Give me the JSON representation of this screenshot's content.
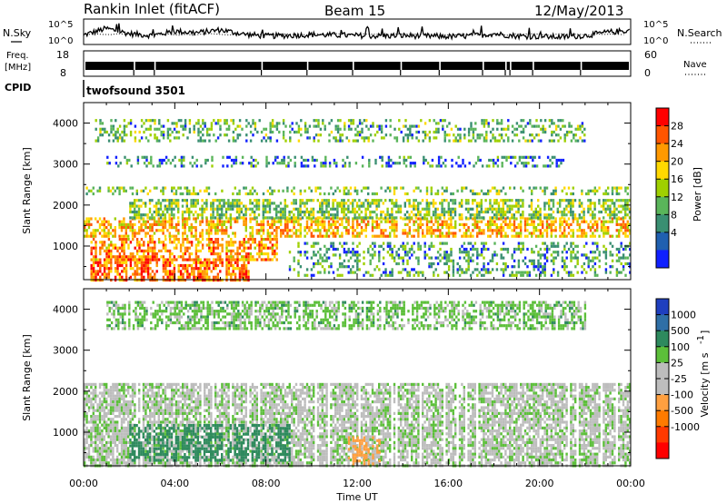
{
  "header": {
    "title": "Rankin Inlet (fitACF)",
    "beam": "Beam 15",
    "date": "12/May/2013"
  },
  "meta_panel": {
    "nsky_label": "N.Sky",
    "nsearch_label": "N.Search",
    "freq_label": "Freq.",
    "freq_unit": "[MHz]",
    "nave_label": "Nave",
    "cpid_label": "CPID",
    "cpid_value": "twofsound 3501",
    "noise_ticks": [
      "10^5",
      "10^0"
    ],
    "noise_ticks_right": [
      "10^5",
      "10^0"
    ],
    "freq_ticks": [
      "18",
      "8"
    ],
    "nave_ticks": [
      "60",
      "0"
    ]
  },
  "chart_data": [
    {
      "type": "heatmap",
      "name": "power",
      "ylabel": "Slant Range [km]",
      "ylim": [
        180,
        4500
      ],
      "yticks": [
        1000,
        2000,
        3000,
        4000
      ],
      "xlim": [
        0,
        24
      ],
      "colorbar_label": "Power [dB]",
      "colorbar_ticks": [
        "28",
        "24",
        "20",
        "16",
        "12",
        "8",
        "4"
      ],
      "colorbar_colors": [
        "#ff0000",
        "#ff5500",
        "#ff9900",
        "#ffd900",
        "#9fd000",
        "#5ab55a",
        "#3a8f72",
        "#2060b0",
        "#1020ff"
      ],
      "regions": [
        {
          "t0": 0.3,
          "t1": 7.2,
          "r0": 200,
          "r1": 700,
          "level": 25
        },
        {
          "t0": 0.3,
          "t1": 8.5,
          "r0": 700,
          "r1": 1200,
          "level": 22
        },
        {
          "t0": 0,
          "t1": 24,
          "r0": 1250,
          "r1": 1700,
          "level": 20
        },
        {
          "t0": 2,
          "t1": 24,
          "r0": 1700,
          "r1": 2150,
          "level": 12
        },
        {
          "t0": 9,
          "t1": 24,
          "r0": 300,
          "r1": 1100,
          "level": 8
        },
        {
          "t0": 0,
          "t1": 24,
          "r0": 2300,
          "r1": 2450,
          "level": 12
        },
        {
          "t0": 1,
          "t1": 21,
          "r0": 2950,
          "r1": 3200,
          "level": 6
        },
        {
          "t0": 0.5,
          "t1": 22,
          "r0": 3600,
          "r1": 4100,
          "level": 10
        }
      ]
    },
    {
      "type": "heatmap",
      "name": "velocity",
      "ylabel": "Slant Range [km]",
      "ylim": [
        180,
        4500
      ],
      "yticks": [
        1000,
        2000,
        3000,
        4000
      ],
      "xlim": [
        0,
        24
      ],
      "xlabel": "Time UT",
      "xticks": [
        "00:00",
        "04:00",
        "08:00",
        "12:00",
        "16:00",
        "20:00",
        "00:00"
      ],
      "colorbar_label": "Velocity [m s",
      "colorbar_sup": "-1",
      "colorbar_ticks": [
        "1000",
        "500",
        "100",
        "25",
        "-25",
        "-100",
        "-500",
        "-1000"
      ],
      "colorbar_colors": [
        "#1f3fbf",
        "#2f6fa6",
        "#2e8a5e",
        "#5cbf3a",
        "#bdbdbd",
        "#bdbdbd",
        "#ffa040",
        "#ff7b00",
        "#ff3a00",
        "#ff0000"
      ],
      "regions": [
        {
          "t0": 0,
          "t1": 24,
          "r0": 200,
          "r1": 2200,
          "level": 0
        },
        {
          "t0": 2,
          "t1": 9,
          "r0": 300,
          "r1": 1200,
          "level": 300
        },
        {
          "t0": 11.5,
          "t1": 13,
          "r0": 200,
          "r1": 900,
          "level": -300
        },
        {
          "t0": 1,
          "t1": 22,
          "r0": 3500,
          "r1": 4200,
          "level": 50
        }
      ]
    },
    {
      "type": "line",
      "name": "noise",
      "ylim": [
        0,
        5
      ],
      "xlim": [
        0,
        24
      ],
      "series": [
        {
          "x": [
            0,
            1,
            2,
            3,
            4,
            5,
            6,
            7,
            8,
            9,
            10,
            11,
            12,
            13,
            14,
            15,
            16,
            17,
            18,
            19,
            20,
            21,
            22,
            23,
            24
          ],
          "y": [
            1.8,
            3.2,
            2.1,
            1.7,
            2.6,
            2.3,
            2.9,
            2.0,
            1.6,
            1.7,
            1.9,
            1.8,
            1.7,
            1.6,
            1.7,
            1.6,
            1.5,
            1.6,
            2.1,
            1.6,
            1.5,
            1.4,
            1.7,
            2.4,
            2.8
          ]
        }
      ]
    },
    {
      "type": "bar",
      "name": "frequency",
      "ylim": [
        8,
        18
      ],
      "xlim": [
        0,
        24
      ],
      "series": [
        {
          "x": [
            0,
            24
          ],
          "y": [
            11,
            11
          ]
        }
      ]
    }
  ]
}
